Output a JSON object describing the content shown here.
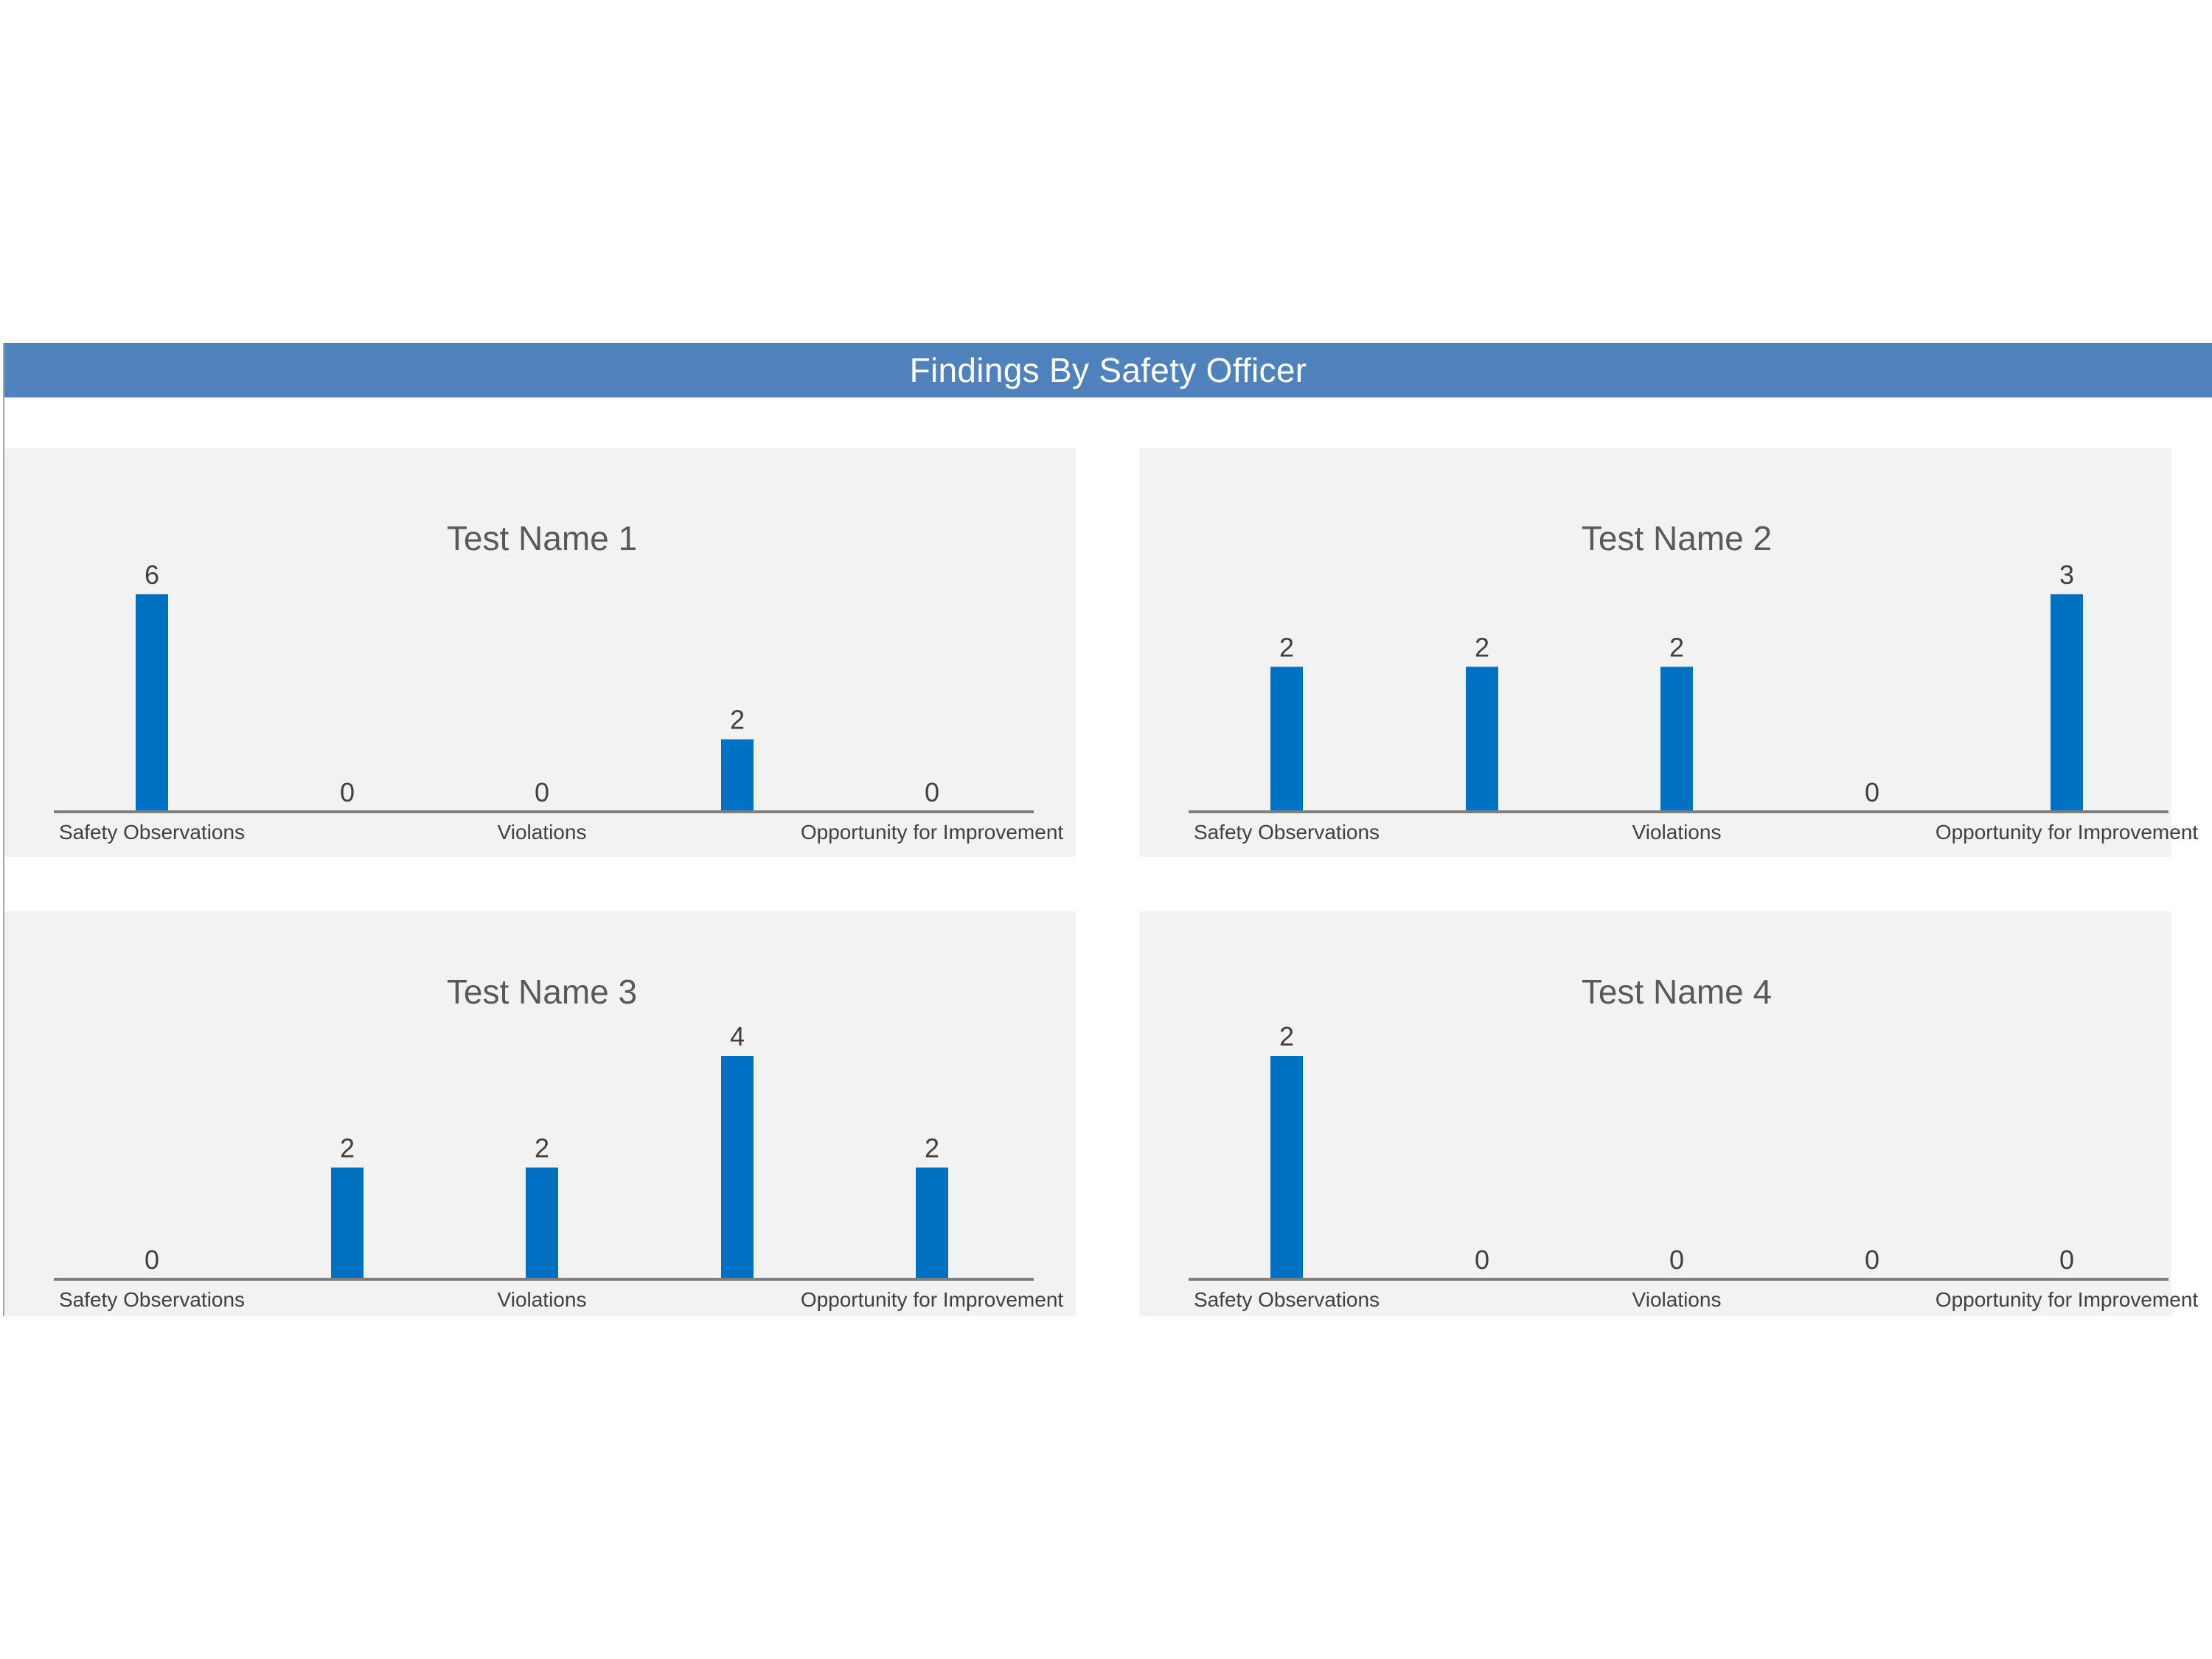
{
  "header": {
    "title": "Findings By Safety Officer"
  },
  "colors": {
    "header_bg": "#4f81bd",
    "bar": "#0070c0",
    "panel_bg": "#f2f2f2",
    "axis": "#7f7f7f",
    "title_text": "#595959",
    "label_text": "#404040"
  },
  "chart_data": [
    {
      "type": "bar",
      "title": "Test Name 1",
      "categories": [
        "Safety Observations",
        "",
        "Violations",
        "",
        "Opportunity for Improvement"
      ],
      "values": [
        6,
        0,
        0,
        2,
        0
      ],
      "grid": false,
      "legend": "none"
    },
    {
      "type": "bar",
      "title": "Test Name 2",
      "categories": [
        "Safety Observations",
        "",
        "Violations",
        "",
        "Opportunity for Improvement"
      ],
      "values": [
        2,
        2,
        2,
        0,
        3
      ],
      "grid": false,
      "legend": "none"
    },
    {
      "type": "bar",
      "title": "Test Name 3",
      "categories": [
        "Safety Observations",
        "",
        "Violations",
        "",
        "Opportunity for Improvement"
      ],
      "values": [
        0,
        2,
        2,
        4,
        2
      ],
      "grid": false,
      "legend": "none"
    },
    {
      "type": "bar",
      "title": "Test Name 4",
      "categories": [
        "Safety Observations",
        "",
        "Violations",
        "",
        "Opportunity for Improvement"
      ],
      "values": [
        2,
        0,
        0,
        0,
        0
      ],
      "grid": false,
      "legend": "none"
    }
  ]
}
